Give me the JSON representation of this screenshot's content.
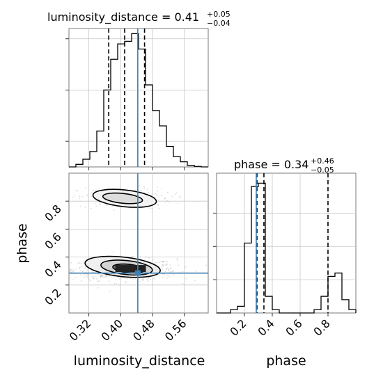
{
  "chart_data": {
    "type": "corner",
    "colors": {
      "truth": "#3f7fb1",
      "hist": "#000000",
      "quantile": "#000000",
      "grid": "#c7c7c7",
      "axes": "#7a7a7a",
      "samples": "#9a9a9a"
    },
    "grid": true,
    "parameters": [
      "luminosity_distance",
      "phase"
    ],
    "truths": {
      "luminosity_distance": 0.443,
      "phase": 0.285
    },
    "panels": [
      {
        "name": "luminosity_distance-marginal",
        "title": {
          "main": "luminosity_distance = 0.41",
          "sup": "+0.05",
          "sub": "−0.04"
        },
        "xlim": [
          0.27,
          0.62
        ],
        "ylim": [
          0,
          27
        ],
        "quantiles": [
          0.37,
          0.41,
          0.46
        ],
        "hist": {
          "edges": [
            0.27,
            0.2875,
            0.305,
            0.3225,
            0.34,
            0.3575,
            0.375,
            0.3925,
            0.41,
            0.4275,
            0.445,
            0.4625,
            0.48,
            0.4975,
            0.515,
            0.5325,
            0.55,
            0.5675,
            0.585,
            0.6025,
            0.62
          ],
          "counts": [
            0,
            0.5,
            1.5,
            3,
            7,
            15,
            21,
            24,
            24.5,
            26,
            23,
            16,
            11,
            8,
            4,
            2,
            1,
            0.3,
            0.1,
            0
          ]
        }
      },
      {
        "name": "phase-marginal",
        "title": {
          "main": "phase = 0.34",
          "sup": "+0.46",
          "sub": "−0.05"
        },
        "xlim": [
          0.0,
          1.0
        ],
        "ylim": [
          0,
          42
        ],
        "quantiles": [
          0.29,
          0.34,
          0.8
        ],
        "hist": {
          "edges": [
            0.0,
            0.05,
            0.1,
            0.15,
            0.2,
            0.25,
            0.3,
            0.35,
            0.4,
            0.45,
            0.5,
            0.55,
            0.6,
            0.65,
            0.7,
            0.75,
            0.8,
            0.85,
            0.9,
            0.95,
            1.0
          ],
          "counts": [
            0,
            0,
            1,
            2,
            21,
            38,
            39,
            5,
            1,
            0,
            0,
            0,
            0,
            0,
            1,
            5,
            11,
            12,
            4,
            1
          ]
        }
      },
      {
        "name": "phase-vs-luminosity_distance-2d",
        "xlim": [
          0.27,
          0.62
        ],
        "ylim": [
          0.0,
          1.0
        ],
        "samples": {
          "modes": [
            {
              "cx": 0.41,
              "cy": 0.31,
              "sx": 0.05,
              "sy": 0.035,
              "weight": 0.78
            },
            {
              "cx": 0.41,
              "cy": 0.82,
              "sx": 0.045,
              "sy": 0.035,
              "weight": 0.22
            }
          ],
          "count": 900
        },
        "contours": [
          {
            "level": "outer",
            "cx": 0.405,
            "cy": 0.33,
            "rx": 0.095,
            "ry": 0.07
          },
          {
            "level": "middle",
            "cx": 0.415,
            "cy": 0.325,
            "rx": 0.065,
            "ry": 0.05
          },
          {
            "level": "inner",
            "cx": 0.42,
            "cy": 0.318,
            "rx": 0.04,
            "ry": 0.03
          },
          {
            "level": "upper-outer",
            "cx": 0.41,
            "cy": 0.82,
            "rx": 0.08,
            "ry": 0.06
          },
          {
            "level": "upper-inner",
            "cx": 0.405,
            "cy": 0.82,
            "rx": 0.05,
            "ry": 0.035
          }
        ]
      }
    ],
    "xticks": {
      "luminosity_distance": [
        "0.32",
        "0.40",
        "0.48",
        "0.56"
      ],
      "phase": [
        "0.2",
        "0.4",
        "0.6",
        "0.8"
      ]
    },
    "yticks": {
      "phase": [
        "0.2",
        "0.4",
        "0.6",
        "0.8"
      ]
    },
    "xlabel": {
      "luminosity_distance": "luminosity_distance",
      "phase": "phase"
    },
    "ylabel": {
      "phase": "phase"
    }
  }
}
